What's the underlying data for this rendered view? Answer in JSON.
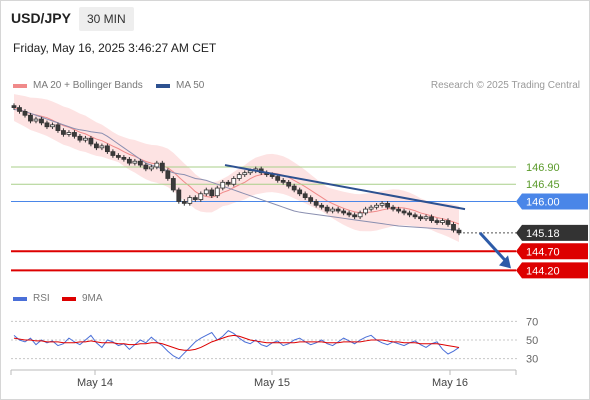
{
  "header": {
    "pair": "USD/JPY",
    "timeframe": "30 MIN",
    "datetime": "Friday, May 16, 2025 3:46:27 AM CET"
  },
  "legend": {
    "bollinger_label": "MA 20 + Bollinger Bands",
    "ma50_label": "MA 50",
    "credit": "Research © 2025 Trading Central"
  },
  "rsi_legend": {
    "rsi_label": "RSI",
    "ma_label": "9MA"
  },
  "colors": {
    "bollinger": "#f08a8a",
    "bollinger_band": "#fde3e3",
    "ma50": "#2d5190",
    "resistance": "#a9cf8a",
    "pivot": "#4a86e8",
    "support": "#dd0000",
    "last_price": "#333333",
    "candle_up": "#ffffff",
    "candle_down": "#3a3a3a",
    "rsi": "#4a6fd8",
    "rsi_ma": "#dd0000"
  },
  "chart_data": {
    "type": "candlestick",
    "price_levels": [
      {
        "value": 146.9,
        "label": "146.90",
        "kind": "resistance"
      },
      {
        "value": 146.45,
        "label": "146.45",
        "kind": "resistance"
      },
      {
        "value": 146.0,
        "label": "146.00",
        "kind": "pivot"
      },
      {
        "value": 145.18,
        "label": "145.18",
        "kind": "last"
      },
      {
        "value": 144.7,
        "label": "144.70",
        "kind": "support"
      },
      {
        "value": 144.2,
        "label": "144.20",
        "kind": "support"
      }
    ],
    "x_ticks": [
      "May 14",
      "May 15",
      "May 16"
    ],
    "close_series": [
      148.45,
      148.35,
      148.25,
      148.1,
      148.15,
      148.05,
      147.95,
      148.0,
      147.85,
      147.75,
      147.8,
      147.7,
      147.6,
      147.65,
      147.5,
      147.4,
      147.45,
      147.3,
      147.2,
      147.15,
      147.1,
      147.0,
      147.05,
      146.95,
      146.85,
      146.9,
      147.0,
      146.8,
      146.6,
      146.3,
      146.0,
      145.95,
      146.1,
      146.05,
      146.2,
      146.3,
      146.15,
      146.35,
      146.5,
      146.45,
      146.6,
      146.7,
      146.75,
      146.8,
      146.85,
      146.75,
      146.7,
      146.65,
      146.55,
      146.5,
      146.4,
      146.3,
      146.2,
      146.1,
      146.0,
      145.9,
      145.85,
      145.75,
      145.8,
      145.75,
      145.7,
      145.65,
      145.6,
      145.7,
      145.8,
      145.85,
      145.9,
      145.95,
      145.85,
      145.8,
      145.75,
      145.7,
      145.65,
      145.6,
      145.55,
      145.6,
      145.5,
      145.45,
      145.5,
      145.4,
      145.25,
      145.18
    ],
    "ma50_series": [
      148.4,
      148.38,
      148.35,
      148.3,
      148.25,
      148.2,
      148.15,
      148.1,
      148.05,
      148.0,
      147.95,
      147.9,
      147.87,
      147.85,
      147.82,
      147.8,
      147.78,
      147.7,
      147.6,
      147.5,
      147.4,
      147.3,
      147.2,
      147.1,
      147.0,
      146.95,
      146.9,
      146.85,
      146.8,
      146.75,
      146.72,
      146.7,
      146.65,
      146.6,
      146.58,
      146.55,
      146.5,
      146.45,
      146.4,
      146.35,
      146.3,
      146.25,
      146.2,
      146.15,
      146.1,
      146.05,
      146.0,
      145.95,
      145.9,
      145.85,
      145.8,
      145.75,
      145.72,
      145.7,
      145.68,
      145.66,
      145.64,
      145.62,
      145.6,
      145.58,
      145.56,
      145.54,
      145.52,
      145.5,
      145.48,
      145.46,
      145.44,
      145.42,
      145.4,
      145.38,
      145.36,
      145.35,
      145.34,
      145.33,
      145.32,
      145.31,
      145.3,
      145.29,
      145.28,
      145.27,
      145.26,
      145.25
    ],
    "trendline": {
      "from": 146.95,
      "to": 145.8
    },
    "projection": {
      "from": 145.18,
      "to": 144.2
    },
    "rsi": {
      "levels": [
        70,
        50,
        30
      ],
      "rsi_series": [
        55,
        50,
        48,
        52,
        45,
        50,
        47,
        49,
        44,
        46,
        52,
        48,
        45,
        50,
        55,
        47,
        42,
        50,
        48,
        44,
        46,
        40,
        45,
        50,
        47,
        53,
        48,
        44,
        38,
        33,
        30,
        36,
        42,
        48,
        52,
        55,
        58,
        50,
        54,
        60,
        57,
        52,
        48,
        46,
        50,
        45,
        43,
        47,
        49,
        44,
        46,
        50,
        52,
        48,
        45,
        47,
        50,
        46,
        44,
        48,
        52,
        49,
        46,
        50,
        53,
        55,
        50,
        47,
        45,
        48,
        46,
        44,
        47,
        49,
        45,
        42,
        46,
        48,
        40,
        35,
        38,
        42
      ],
      "ma_series": [
        52,
        51,
        50,
        50,
        49,
        49,
        48,
        48,
        48,
        47,
        47,
        47,
        48,
        48,
        49,
        48,
        47,
        47,
        47,
        46,
        46,
        45,
        45,
        46,
        46,
        47,
        47,
        46,
        44,
        42,
        40,
        39,
        39,
        40,
        42,
        45,
        48,
        50,
        52,
        54,
        55,
        54,
        52,
        50,
        49,
        48,
        47,
        47,
        47,
        47,
        47,
        47,
        48,
        48,
        48,
        48,
        48,
        47,
        47,
        47,
        48,
        48,
        48,
        48,
        49,
        50,
        50,
        50,
        49,
        48,
        48,
        47,
        47,
        47,
        46,
        46,
        46,
        46,
        45,
        44,
        43,
        42
      ]
    }
  }
}
